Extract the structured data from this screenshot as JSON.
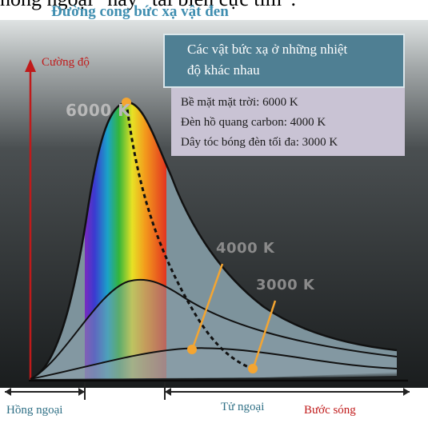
{
  "top_text": "hồng ngoại” hay “tai biến cực tím”.",
  "chart_data": {
    "type": "line",
    "title": "Đường cong bức xạ vật đen",
    "ylabel": "Cường độ",
    "xlabel": "Bước sóng",
    "region_labels": [
      "Hồng ngoại",
      "Tử ngoại"
    ],
    "series": [
      {
        "name": "6000 K",
        "peak_label": "6000 K"
      },
      {
        "name": "4000 K",
        "peak_label": "4000 K"
      },
      {
        "name": "3000 K",
        "peak_label": "3000 K"
      }
    ]
  },
  "info_box": {
    "title_line1": "Các vật bức xạ ở những nhiệt",
    "title_line2": "độ khác nhau",
    "items": [
      "Bề mặt mặt trời: 6000 K",
      "Đèn hồ quang carbon: 4000 K",
      "Dây tóc bóng đèn tối đa: 3000 K"
    ]
  },
  "colors": {
    "title": "#3f8eb0",
    "axis_labels": "#c01a1a",
    "panel_header": "#4f7f93",
    "panel_body": "#c9c3d4",
    "plot_background": "#1e2223",
    "curve_fill": "#7f96a0",
    "marker": "#f4a531"
  }
}
